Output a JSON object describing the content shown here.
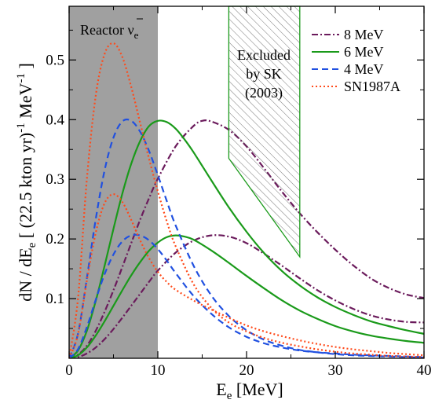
{
  "chart_data": {
    "type": "line",
    "xlabel_main": "E",
    "xlabel_sub": "e",
    "xlabel_unit": " [MeV]",
    "ylabel": "dN / dE",
    "ylabel_sub": "e",
    "ylabel_unit_pre": " [ (22.5 kton yr)",
    "ylabel_sup": "-1",
    "ylabel_unit_post": " MeV",
    "ylabel_sup2": "-1",
    "ylabel_close": " ]",
    "xlim": [
      0,
      40
    ],
    "ylim": [
      0,
      0.59
    ],
    "xticks": [
      0,
      10,
      20,
      30,
      40
    ],
    "xtick_labels": [
      "0",
      "10",
      "20",
      "30",
      "40"
    ],
    "yticks": [
      0.1,
      0.2,
      0.3,
      0.4,
      0.5
    ],
    "ytick_labels": [
      "0.1",
      "0.2",
      "0.3",
      "0.4",
      "0.5"
    ],
    "grid": false,
    "legend_position": "top-right",
    "reactor_band": {
      "x_range": [
        0,
        10
      ],
      "label_main": "Reactor ν",
      "label_sub": "e",
      "color": "#a0a0a0"
    },
    "excluded_region": {
      "label_lines": [
        "Excluded",
        "by SK",
        "(2003)"
      ],
      "polygon": [
        [
          18,
          0.59
        ],
        [
          26,
          0.59
        ],
        [
          26,
          0.17
        ],
        [
          18,
          0.335
        ]
      ]
    },
    "series": [
      {
        "name": "8 MeV",
        "color": "#6b1b5c",
        "dash": "dashdot",
        "kind": "upper",
        "x": [
          0,
          1,
          2,
          3,
          4,
          5,
          6,
          7,
          8,
          9,
          10,
          12,
          14,
          15,
          16,
          18,
          20,
          22,
          24,
          26,
          28,
          30,
          32,
          34,
          36,
          38,
          40
        ],
        "y": [
          0,
          0.006,
          0.021,
          0.046,
          0.078,
          0.114,
          0.153,
          0.193,
          0.232,
          0.268,
          0.301,
          0.355,
          0.389,
          0.398,
          0.397,
          0.383,
          0.355,
          0.318,
          0.279,
          0.243,
          0.211,
          0.182,
          0.156,
          0.134,
          0.118,
          0.107,
          0.101
        ]
      },
      {
        "name": "8 MeV",
        "color": "#6b1b5c",
        "dash": "dashdot",
        "kind": "lower",
        "x": [
          0,
          1,
          2,
          3,
          4,
          5,
          6,
          7,
          8,
          9,
          10,
          12,
          14,
          16,
          18,
          20,
          22,
          24,
          26,
          28,
          30,
          32,
          34,
          36,
          38,
          40
        ],
        "y": [
          0,
          0.002,
          0.008,
          0.018,
          0.032,
          0.049,
          0.068,
          0.088,
          0.108,
          0.128,
          0.147,
          0.177,
          0.197,
          0.206,
          0.204,
          0.193,
          0.175,
          0.155,
          0.134,
          0.114,
          0.097,
          0.083,
          0.072,
          0.065,
          0.061,
          0.06
        ]
      },
      {
        "name": "6 MeV",
        "color": "#1a9a1a",
        "dash": "solid",
        "kind": "upper",
        "x": [
          0,
          1,
          2,
          3,
          4,
          5,
          6,
          7,
          8,
          9,
          10,
          11,
          12,
          13,
          14,
          16,
          18,
          20,
          22,
          24,
          26,
          28,
          30,
          32,
          34,
          36,
          38,
          40
        ],
        "y": [
          0,
          0.013,
          0.046,
          0.096,
          0.155,
          0.217,
          0.276,
          0.326,
          0.364,
          0.389,
          0.398,
          0.396,
          0.385,
          0.367,
          0.346,
          0.299,
          0.253,
          0.212,
          0.176,
          0.146,
          0.122,
          0.102,
          0.086,
          0.073,
          0.062,
          0.054,
          0.047,
          0.041
        ]
      },
      {
        "name": "6 MeV",
        "color": "#1a9a1a",
        "dash": "solid",
        "kind": "lower",
        "x": [
          0,
          1,
          2,
          3,
          4,
          5,
          6,
          7,
          8,
          9,
          10,
          11,
          12,
          13,
          14,
          16,
          18,
          20,
          22,
          24,
          26,
          28,
          30,
          32,
          34,
          36,
          38,
          40
        ],
        "y": [
          0,
          0.005,
          0.018,
          0.038,
          0.062,
          0.088,
          0.114,
          0.139,
          0.161,
          0.18,
          0.194,
          0.203,
          0.206,
          0.204,
          0.199,
          0.181,
          0.16,
          0.138,
          0.117,
          0.097,
          0.08,
          0.066,
          0.054,
          0.045,
          0.038,
          0.033,
          0.029,
          0.026
        ]
      },
      {
        "name": "4 MeV",
        "color": "#2050e0",
        "dash": "dashed",
        "kind": "upper",
        "x": [
          0,
          1,
          2,
          3,
          4,
          5,
          6,
          7,
          8,
          9,
          10,
          11,
          12,
          14,
          16,
          18,
          20,
          22,
          24,
          26,
          28,
          30,
          32,
          34,
          36,
          38,
          40
        ],
        "y": [
          0,
          0.041,
          0.134,
          0.233,
          0.315,
          0.37,
          0.397,
          0.398,
          0.38,
          0.348,
          0.307,
          0.264,
          0.223,
          0.156,
          0.106,
          0.071,
          0.047,
          0.031,
          0.021,
          0.014,
          0.01,
          0.007,
          0.005,
          0.004,
          0.003,
          0.002,
          0.001
        ]
      },
      {
        "name": "4 MeV",
        "color": "#2050e0",
        "dash": "dashed",
        "kind": "lower",
        "x": [
          0,
          1,
          2,
          3,
          4,
          5,
          6,
          7,
          8,
          9,
          10,
          11,
          12,
          14,
          16,
          18,
          20,
          22,
          24,
          26,
          28,
          30,
          32,
          34,
          36,
          38,
          40
        ],
        "y": [
          0,
          0.015,
          0.052,
          0.098,
          0.141,
          0.174,
          0.196,
          0.206,
          0.206,
          0.198,
          0.183,
          0.164,
          0.143,
          0.105,
          0.075,
          0.052,
          0.036,
          0.025,
          0.018,
          0.013,
          0.01,
          0.008,
          0.006,
          0.005,
          0.004,
          0.003,
          0.002
        ]
      },
      {
        "name": "SN1987A",
        "color": "#ff4a1a",
        "dash": "dotted",
        "kind": "upper",
        "x": [
          0,
          1,
          2,
          3,
          4,
          5,
          6,
          7,
          8,
          9,
          10,
          11,
          12,
          14,
          16,
          18,
          20,
          22,
          24,
          26,
          28,
          30,
          32,
          34,
          36,
          38,
          40
        ],
        "y": [
          0,
          0.1,
          0.3,
          0.44,
          0.51,
          0.528,
          0.505,
          0.455,
          0.395,
          0.335,
          0.28,
          0.23,
          0.188,
          0.125,
          0.085,
          0.06,
          0.045,
          0.034,
          0.026,
          0.02,
          0.015,
          0.011,
          0.008,
          0.006,
          0.004,
          0.003,
          0.002
        ]
      },
      {
        "name": "SN1987A",
        "color": "#ff4a1a",
        "dash": "dotted",
        "kind": "lower",
        "x": [
          0,
          1,
          2,
          3,
          4,
          5,
          6,
          7,
          8,
          9,
          10,
          11,
          12,
          14,
          16,
          18,
          20,
          22,
          24,
          26,
          28,
          30,
          32,
          34,
          36,
          38,
          40
        ],
        "y": [
          0,
          0.04,
          0.13,
          0.21,
          0.26,
          0.275,
          0.262,
          0.232,
          0.198,
          0.168,
          0.145,
          0.128,
          0.115,
          0.097,
          0.082,
          0.068,
          0.055,
          0.045,
          0.037,
          0.03,
          0.024,
          0.019,
          0.015,
          0.012,
          0.009,
          0.007,
          0.005
        ]
      }
    ],
    "legend": [
      {
        "label": "8 MeV",
        "color": "#6b1b5c",
        "dash": "dashdot"
      },
      {
        "label": "6 MeV",
        "color": "#1a9a1a",
        "dash": "solid"
      },
      {
        "label": "4 MeV",
        "color": "#2050e0",
        "dash": "dashed"
      },
      {
        "label": "SN1987A",
        "color": "#ff4a1a",
        "dash": "dotted"
      }
    ]
  }
}
